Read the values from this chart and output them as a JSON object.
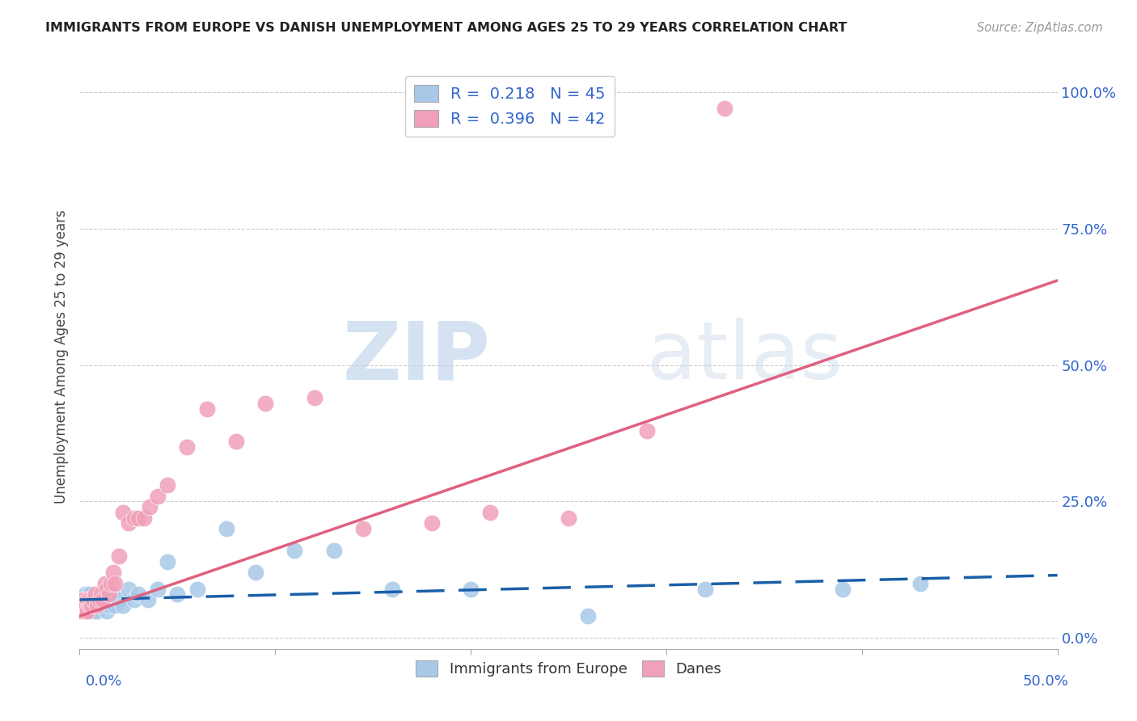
{
  "title": "IMMIGRANTS FROM EUROPE VS DANISH UNEMPLOYMENT AMONG AGES 25 TO 29 YEARS CORRELATION CHART",
  "source": "Source: ZipAtlas.com",
  "ylabel": "Unemployment Among Ages 25 to 29 years",
  "ylabel_right_ticks": [
    "100.0%",
    "75.0%",
    "50.0%",
    "25.0%",
    "0.0%"
  ],
  "ylabel_right_vals": [
    1.0,
    0.75,
    0.5,
    0.25,
    0.0
  ],
  "xmin": 0.0,
  "xmax": 0.5,
  "ymin": -0.02,
  "ymax": 1.05,
  "blue_R": 0.218,
  "blue_N": 45,
  "pink_R": 0.396,
  "pink_N": 42,
  "blue_color": "#a8c8e8",
  "pink_color": "#f0a0b8",
  "blue_line_color": "#1a5fa8",
  "pink_line_color": "#e06080",
  "watermark_zip": "ZIP",
  "watermark_atlas": "atlas",
  "legend_label_1": "Immigrants from Europe",
  "legend_label_2": "Danes",
  "blue_trend_x0": 0.0,
  "blue_trend_y0": 0.07,
  "blue_trend_x1": 0.5,
  "blue_trend_y1": 0.115,
  "pink_trend_x0": 0.0,
  "pink_trend_y0": 0.04,
  "pink_trend_x1": 0.5,
  "pink_trend_y1": 0.655,
  "blue_scatter_x": [
    0.001,
    0.002,
    0.002,
    0.003,
    0.003,
    0.004,
    0.004,
    0.005,
    0.005,
    0.006,
    0.006,
    0.007,
    0.007,
    0.008,
    0.008,
    0.009,
    0.01,
    0.011,
    0.012,
    0.013,
    0.014,
    0.015,
    0.016,
    0.017,
    0.018,
    0.02,
    0.022,
    0.025,
    0.028,
    0.03,
    0.035,
    0.04,
    0.045,
    0.05,
    0.06,
    0.075,
    0.09,
    0.11,
    0.13,
    0.16,
    0.2,
    0.26,
    0.32,
    0.39,
    0.43
  ],
  "blue_scatter_y": [
    0.06,
    0.07,
    0.05,
    0.06,
    0.08,
    0.05,
    0.07,
    0.06,
    0.08,
    0.05,
    0.07,
    0.06,
    0.05,
    0.07,
    0.06,
    0.05,
    0.06,
    0.07,
    0.06,
    0.08,
    0.05,
    0.06,
    0.07,
    0.08,
    0.06,
    0.07,
    0.06,
    0.09,
    0.07,
    0.08,
    0.07,
    0.09,
    0.14,
    0.08,
    0.09,
    0.2,
    0.12,
    0.16,
    0.16,
    0.09,
    0.09,
    0.04,
    0.09,
    0.09,
    0.1
  ],
  "pink_scatter_x": [
    0.001,
    0.002,
    0.002,
    0.003,
    0.003,
    0.004,
    0.004,
    0.005,
    0.005,
    0.006,
    0.007,
    0.008,
    0.009,
    0.01,
    0.011,
    0.012,
    0.013,
    0.014,
    0.015,
    0.016,
    0.017,
    0.018,
    0.02,
    0.022,
    0.025,
    0.028,
    0.03,
    0.033,
    0.036,
    0.04,
    0.045,
    0.055,
    0.065,
    0.08,
    0.095,
    0.12,
    0.145,
    0.18,
    0.21,
    0.25,
    0.29,
    0.33
  ],
  "pink_scatter_y": [
    0.05,
    0.06,
    0.07,
    0.05,
    0.06,
    0.07,
    0.05,
    0.06,
    0.07,
    0.06,
    0.07,
    0.08,
    0.06,
    0.07,
    0.08,
    0.07,
    0.1,
    0.09,
    0.08,
    0.1,
    0.12,
    0.1,
    0.15,
    0.23,
    0.21,
    0.22,
    0.22,
    0.22,
    0.24,
    0.26,
    0.28,
    0.35,
    0.42,
    0.36,
    0.43,
    0.44,
    0.2,
    0.21,
    0.23,
    0.22,
    0.38,
    0.97
  ]
}
